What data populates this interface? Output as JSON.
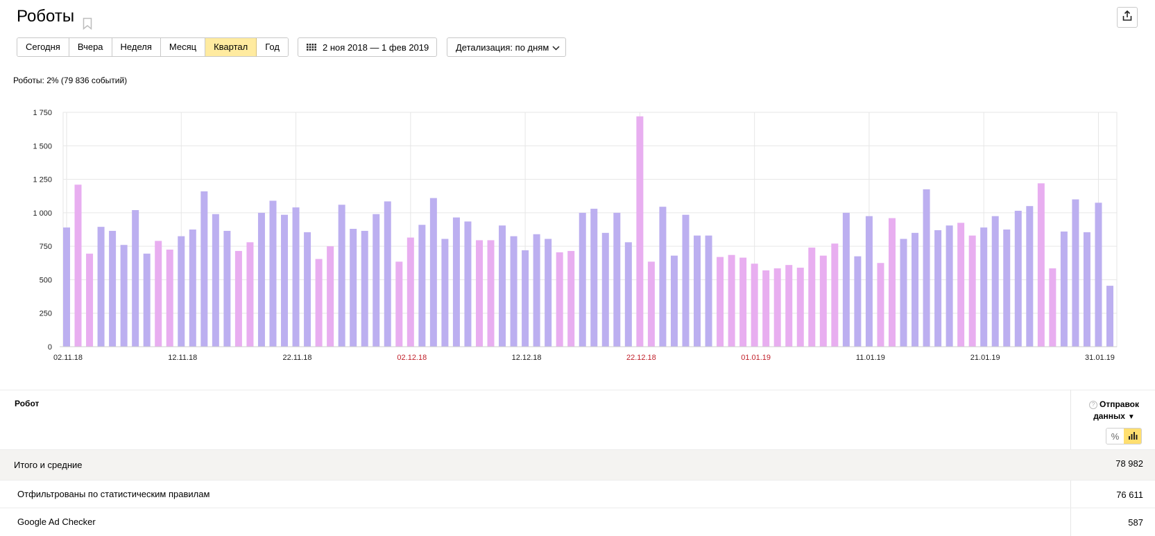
{
  "header": {
    "title": "Роботы"
  },
  "periods": [
    {
      "label": "Сегодня",
      "active": false
    },
    {
      "label": "Вчера",
      "active": false
    },
    {
      "label": "Неделя",
      "active": false
    },
    {
      "label": "Месяц",
      "active": false
    },
    {
      "label": "Квартал",
      "active": true
    },
    {
      "label": "Год",
      "active": false
    }
  ],
  "date_range": {
    "label": "2 ноя 2018 — 1 фев 2019"
  },
  "detail": {
    "label": "Детализация: по дням"
  },
  "summary": "Роботы: 2% (79 836 событий)",
  "colors": {
    "weekday": "#bcaff0",
    "weekend": "#e8aef0",
    "holiday_tick": "#c0202a",
    "active_button": "#ffeba0"
  },
  "chart_data": {
    "type": "bar",
    "ylim": [
      0,
      1750
    ],
    "yticks": [
      "0",
      "250",
      "500",
      "750",
      "1 000",
      "1 250",
      "1 500",
      "1 750"
    ],
    "ytick_values": [
      0,
      250,
      500,
      750,
      1000,
      1250,
      1500,
      1750
    ],
    "xtick_labels": [
      {
        "label": "02.11.18",
        "index": 0,
        "holiday": false
      },
      {
        "label": "12.11.18",
        "index": 10,
        "holiday": false
      },
      {
        "label": "22.11.18",
        "index": 20,
        "holiday": false
      },
      {
        "label": "02.12.18",
        "index": 30,
        "holiday": true
      },
      {
        "label": "12.12.18",
        "index": 40,
        "holiday": false
      },
      {
        "label": "22.12.18",
        "index": 50,
        "holiday": true
      },
      {
        "label": "01.01.19",
        "index": 60,
        "holiday": true
      },
      {
        "label": "11.01.19",
        "index": 70,
        "holiday": false
      },
      {
        "label": "21.01.19",
        "index": 80,
        "holiday": false
      },
      {
        "label": "31.01.19",
        "index": 90,
        "holiday": false
      }
    ],
    "values": [
      890,
      1210,
      695,
      895,
      865,
      760,
      1020,
      695,
      790,
      725,
      825,
      875,
      1160,
      990,
      865,
      715,
      780,
      1000,
      1090,
      985,
      1040,
      855,
      655,
      750,
      1060,
      880,
      865,
      990,
      1085,
      635,
      815,
      910,
      1110,
      805,
      965,
      935,
      795,
      795,
      905,
      825,
      720,
      840,
      805,
      705,
      715,
      1000,
      1030,
      850,
      1000,
      780,
      1720,
      635,
      1045,
      680,
      985,
      830,
      830,
      670,
      685,
      665,
      620,
      570,
      585,
      610,
      590,
      740,
      680,
      770,
      1000,
      675,
      975,
      625,
      960,
      805,
      850,
      1175,
      870,
      905,
      925,
      830,
      890,
      975,
      875,
      1015,
      1050,
      1220,
      585,
      860,
      1100,
      855,
      1075,
      455
    ],
    "weekend": [
      false,
      true,
      true,
      false,
      false,
      false,
      false,
      false,
      true,
      true,
      false,
      false,
      false,
      false,
      false,
      true,
      true,
      false,
      false,
      false,
      false,
      false,
      true,
      true,
      false,
      false,
      false,
      false,
      false,
      true,
      true,
      false,
      false,
      false,
      false,
      false,
      true,
      true,
      false,
      false,
      false,
      false,
      false,
      true,
      true,
      false,
      false,
      false,
      false,
      false,
      true,
      true,
      false,
      false,
      false,
      false,
      false,
      true,
      true,
      true,
      true,
      true,
      true,
      true,
      true,
      true,
      true,
      true,
      false,
      false,
      false,
      true,
      true,
      false,
      false,
      false,
      false,
      false,
      true,
      true,
      false,
      false,
      false,
      false,
      false,
      true,
      true,
      false,
      false,
      false,
      false,
      false
    ]
  },
  "table": {
    "col_robot": "Робот",
    "col_metric": "Отправок данных",
    "toggle_percent": "%",
    "rows": [
      {
        "label": "Итого и средние",
        "value": "78 982"
      },
      {
        "label": "Отфильтрованы по статистическим правилам",
        "value": "76 611"
      },
      {
        "label": "Google Ad Checker",
        "value": "587"
      }
    ]
  }
}
